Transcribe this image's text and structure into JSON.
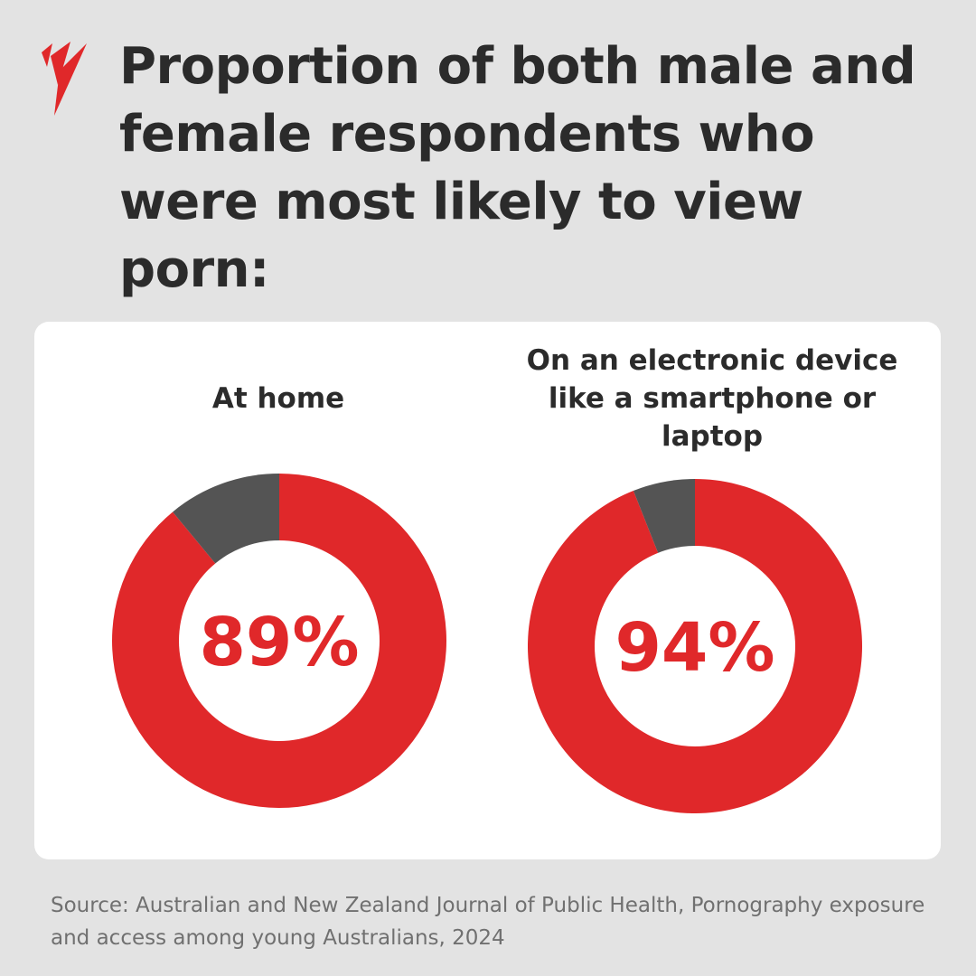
{
  "title": "Proportion of both male and female respondents who were most likely to view porn:",
  "source": "Source: Australian and New Zealand Journal of Public Health, Pornography exposure and access among young Australians, 2024",
  "colors": {
    "accent": "#e0282a",
    "remainder": "#545454",
    "background": "#e3e3e3",
    "card": "#ffffff",
    "text": "#2b2b2b",
    "source_text": "#707070"
  },
  "chart_data": [
    {
      "type": "pie",
      "title": "At home",
      "value_label": "89%",
      "values": [
        89,
        11
      ],
      "colors": [
        "#e0282a",
        "#545454"
      ]
    },
    {
      "type": "pie",
      "title": "On an electronic device like a smartphone or laptop",
      "value_label": "94%",
      "values": [
        94,
        6
      ],
      "colors": [
        "#e0282a",
        "#545454"
      ]
    }
  ]
}
